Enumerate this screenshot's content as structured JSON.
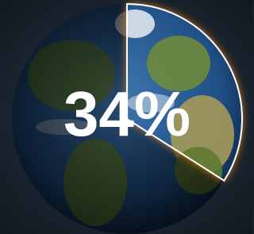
{
  "chart_data": {
    "type": "pie",
    "values": [
      34
    ],
    "value_labels": [
      "34%"
    ]
  }
}
